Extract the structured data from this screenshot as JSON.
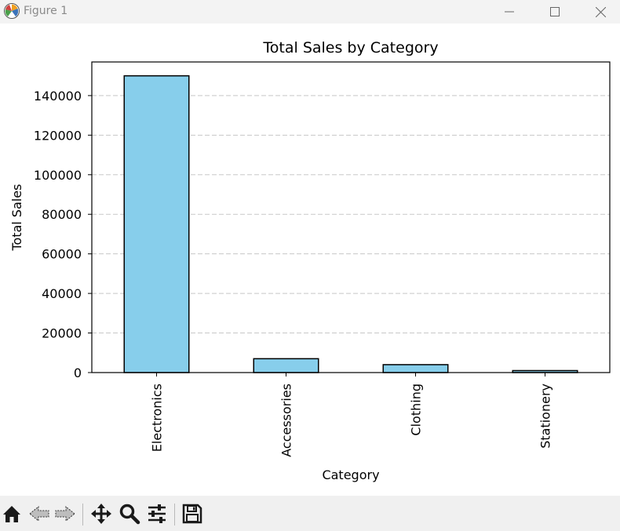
{
  "window": {
    "title": "Figure 1"
  },
  "chart_data": {
    "type": "bar",
    "title": "Total Sales by Category",
    "xlabel": "Category",
    "ylabel": "Total Sales",
    "categories": [
      "Electronics",
      "Accessories",
      "Clothing",
      "Stationery"
    ],
    "values": [
      150000,
      7000,
      4000,
      1000
    ],
    "ylim": [
      0,
      157000
    ],
    "yticks": [
      0,
      20000,
      40000,
      60000,
      80000,
      100000,
      120000,
      140000
    ],
    "grid": "y dashed",
    "bar_color": "#87ceeb",
    "edge_color": "#000000"
  },
  "toolbar": {
    "buttons": [
      {
        "name": "home-button",
        "icon": "home-icon"
      },
      {
        "name": "back-button",
        "icon": "arrow-left-icon"
      },
      {
        "name": "forward-button",
        "icon": "arrow-right-icon"
      },
      {
        "name": "pan-button",
        "icon": "move-icon"
      },
      {
        "name": "zoom-button",
        "icon": "zoom-icon"
      },
      {
        "name": "configure-button",
        "icon": "sliders-icon"
      },
      {
        "name": "save-button",
        "icon": "floppy-icon"
      }
    ]
  }
}
